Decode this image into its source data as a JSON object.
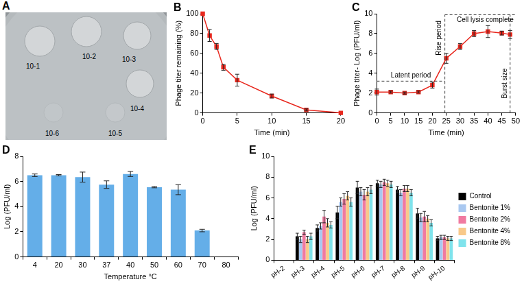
{
  "plate": {
    "panel": "A",
    "labels": [
      "10-1",
      "10-2",
      "10-3",
      "10-4",
      "10-5",
      "10-6"
    ]
  },
  "chart_data": [
    {
      "panel": "B",
      "type": "line",
      "x": [
        0,
        1,
        2,
        3,
        5,
        10,
        15,
        20
      ],
      "values": [
        100,
        78,
        67,
        46,
        33,
        17,
        3,
        0
      ],
      "errors": [
        0,
        6,
        3,
        3,
        6,
        2,
        1,
        0
      ],
      "color": "#e8281e",
      "marker": "square",
      "x_label": "Time (min)",
      "y_label": "Phage titer remaining (%)",
      "xlim": [
        0,
        20
      ],
      "xticks": [
        0,
        5,
        10,
        15,
        20
      ],
      "ylim": [
        0,
        100
      ],
      "yticks": [
        0,
        20,
        40,
        60,
        80,
        100
      ],
      "grid": false
    },
    {
      "panel": "C",
      "type": "line",
      "x": [
        0,
        5,
        10,
        15,
        20,
        25,
        30,
        35,
        40,
        45,
        48
      ],
      "values": [
        2.1,
        2.1,
        2.0,
        2.1,
        2.8,
        5.5,
        6.7,
        8.0,
        8.2,
        8.05,
        7.9
      ],
      "errors": [
        0.3,
        0.1,
        0.1,
        0.1,
        0.3,
        0.5,
        0.3,
        0.3,
        0.6,
        0.2,
        0.4
      ],
      "color": "#e8281e",
      "marker": "square",
      "x_label": "Time (min)",
      "y_label": "Phage titer- Log (PFU/ml)",
      "xlim": [
        0,
        50
      ],
      "xticks": [
        0,
        5,
        10,
        15,
        20,
        25,
        30,
        35,
        40,
        45,
        50
      ],
      "ylim": [
        0,
        10
      ],
      "yticks": [
        0,
        2,
        4,
        6,
        8,
        10
      ],
      "grid": false,
      "annotations": [
        "Latent period",
        "Rise period",
        "Cell lysis complete",
        "Burst size"
      ],
      "reference_lines": {
        "x": [
          24.5,
          48
        ],
        "y": [
          3.2,
          9.9
        ]
      }
    },
    {
      "panel": "D",
      "type": "bar",
      "categories": [
        "4",
        "20",
        "30",
        "37",
        "40",
        "50",
        "60",
        "70",
        "80"
      ],
      "values": [
        6.5,
        6.5,
        6.35,
        5.75,
        6.6,
        5.55,
        5.35,
        2.1,
        0
      ],
      "errors": [
        0.1,
        0.05,
        0.4,
        0.3,
        0.2,
        0.05,
        0.4,
        0.1,
        0
      ],
      "color": "#64aee8",
      "x_label": "Temperature °C",
      "y_label": "Log (PFU/ml)",
      "ylim": [
        0,
        8
      ],
      "yticks": [
        0,
        2,
        4,
        6,
        8
      ],
      "grid": false
    },
    {
      "panel": "E",
      "type": "bar",
      "categories": [
        "pH-2",
        "pH-3",
        "pH-4",
        "pH-5",
        "pH-6",
        "pH-7",
        "pH-8",
        "pH-9",
        "pH-10"
      ],
      "series": [
        {
          "name": "Control",
          "color": "#000000",
          "values": [
            0,
            2.3,
            3.1,
            4.6,
            7.0,
            7.4,
            6.8,
            4.5,
            2.1
          ],
          "errors": [
            0,
            0.3,
            0.3,
            0.6,
            0.6,
            0.3,
            0.3,
            0.5,
            0.2
          ]
        },
        {
          "name": "Bentonite 1%",
          "color": "#a9c8f0",
          "values": [
            0,
            2.0,
            3.3,
            5.6,
            6.6,
            7.3,
            6.5,
            4.1,
            2.2
          ],
          "errors": [
            0,
            0.3,
            0.3,
            0.4,
            0.4,
            0.3,
            0.3,
            0.4,
            0.2
          ]
        },
        {
          "name": "Bentonite 2%",
          "color": "#f07aa0",
          "values": [
            0,
            2.7,
            4.2,
            5.9,
            6.3,
            7.5,
            6.9,
            4.2,
            2.2
          ],
          "errors": [
            0,
            0.2,
            0.6,
            0.5,
            0.5,
            0.3,
            0.3,
            0.5,
            0.2
          ]
        },
        {
          "name": "Bentonite 4%",
          "color": "#f8c98a",
          "values": [
            0,
            2.0,
            3.6,
            6.2,
            6.6,
            7.4,
            6.9,
            4.0,
            2.1
          ],
          "errors": [
            0,
            0.3,
            0.4,
            0.4,
            0.4,
            0.3,
            0.3,
            0.3,
            0.2
          ]
        },
        {
          "name": "Bentonite 8%",
          "color": "#7fe3ec",
          "values": [
            0,
            2.3,
            3.4,
            5.6,
            6.8,
            7.3,
            6.5,
            3.6,
            2.1
          ],
          "errors": [
            0,
            0.3,
            0.3,
            0.4,
            0.4,
            0.3,
            0.3,
            0.3,
            0.2
          ]
        }
      ],
      "y_label": "Log (PFU/ml)",
      "ylim": [
        0,
        10
      ],
      "yticks": [
        0,
        2,
        4,
        6,
        8,
        10
      ],
      "grid": false,
      "legend": "right"
    }
  ]
}
